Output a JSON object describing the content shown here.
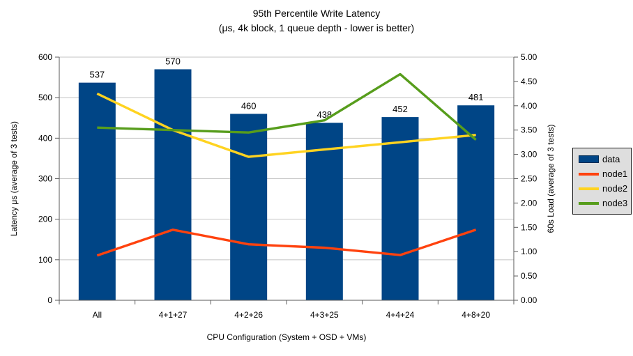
{
  "title": {
    "line1": "95th Percentile Write Latency",
    "line2": "(μs, 4k block, 1 queue depth - lower is better)"
  },
  "chart_data": {
    "type": "bar",
    "note": "combination chart: bars on left axis, lines on right axis",
    "categories": [
      "All",
      "4+1+27",
      "4+2+26",
      "4+3+25",
      "4+4+24",
      "4+8+20"
    ],
    "bar_series": {
      "name": "data",
      "axis": "left",
      "values": [
        537,
        570,
        460,
        438,
        452,
        481
      ],
      "color": "#004586"
    },
    "line_series": [
      {
        "name": "node1",
        "axis": "right",
        "values": [
          0.92,
          1.45,
          1.15,
          1.08,
          0.93,
          1.45
        ],
        "color": "#FF420E"
      },
      {
        "name": "node2",
        "axis": "right",
        "values": [
          4.25,
          3.5,
          2.95,
          3.1,
          3.25,
          3.4
        ],
        "color": "#FFD320"
      },
      {
        "name": "node3",
        "axis": "right",
        "values": [
          3.55,
          3.5,
          3.45,
          3.7,
          4.65,
          3.3
        ],
        "color": "#579D1C"
      }
    ],
    "left_axis": {
      "label": "Latency μs (average of 3 tests)",
      "min": 0,
      "max": 600,
      "step": 100
    },
    "right_axis": {
      "label": "60s Load (average of 3 tests)",
      "min": 0,
      "max": 5,
      "step": 0.5,
      "decimals": 2
    },
    "x_axis": {
      "label": "CPU Configuration (System + OSD + VMs)"
    },
    "bar_value_labels_shown": true,
    "grid": "horizontal",
    "legend_position": "right",
    "layout_colors": {
      "grid": "#c3c3c3",
      "axis": "#5a5a5a",
      "legend_bg": "#dedede",
      "legend_border": "#1a1a1a"
    }
  }
}
